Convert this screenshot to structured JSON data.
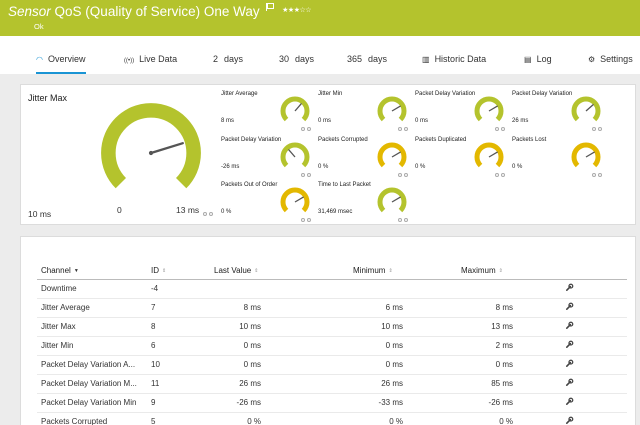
{
  "header": {
    "kind": "Sensor",
    "title": "QoS (Quality of Service) One Way",
    "stars": "★★★☆☆",
    "status": "Ok"
  },
  "tabs": [
    {
      "icon": "◠",
      "label": "Overview"
    },
    {
      "icon": "((•))",
      "label": "Live Data"
    },
    {
      "num": "2",
      "label": "days"
    },
    {
      "num": "30",
      "label": "days"
    },
    {
      "num": "365",
      "label": "days"
    },
    {
      "icon": "▥",
      "label": "Historic Data"
    },
    {
      "icon": "▤",
      "label": "Log"
    },
    {
      "icon": "⚙",
      "label": "Settings"
    }
  ],
  "big_gauge": {
    "title": "Jitter Max",
    "value": "10 ms",
    "scale_min": "0",
    "scale_max": "13 ms",
    "fraction": 0.77,
    "color": "#b4c32d"
  },
  "mini_gauges": [
    {
      "label": "Jitter Average",
      "value": "8 ms",
      "fraction": 0.65,
      "color": "#b4c32d"
    },
    {
      "label": "Jitter Min",
      "value": "0 ms",
      "fraction": 0.72,
      "color": "#b4c32d"
    },
    {
      "label": "Packet Delay Variation",
      "value": "0 ms",
      "fraction": 0.72,
      "color": "#b4c32d"
    },
    {
      "label": "Packet Delay Variation",
      "value": "26 ms",
      "fraction": 0.68,
      "color": "#b4c32d"
    },
    {
      "label": "Packet Delay Variation",
      "value": "-26 ms",
      "fraction": 0.35,
      "color": "#b4c32d"
    },
    {
      "label": "Packets Corrupted",
      "value": "0 %",
      "fraction": 0.72,
      "color": "#e3b800"
    },
    {
      "label": "Packets Duplicated",
      "value": "0 %",
      "fraction": 0.72,
      "color": "#e3b800"
    },
    {
      "label": "Packets Lost",
      "value": "0 %",
      "fraction": 0.72,
      "color": "#e3b800"
    },
    {
      "label": "Packets Out of Order",
      "value": "0 %",
      "fraction": 0.72,
      "color": "#e3b800"
    },
    {
      "label": "Time to Last Packet",
      "value": "31,469 msec",
      "fraction": 0.72,
      "color": "#b4c32d"
    }
  ],
  "table": {
    "headers": {
      "channel": "Channel",
      "id": "ID",
      "last": "Last Value",
      "min": "Minimum",
      "max": "Maximum"
    },
    "rows": [
      {
        "channel": "Downtime",
        "id": "-4",
        "last": "",
        "min": "",
        "max": ""
      },
      {
        "channel": "Jitter Average",
        "id": "7",
        "last": "8 ms",
        "min": "6 ms",
        "max": "8 ms"
      },
      {
        "channel": "Jitter Max",
        "id": "8",
        "last": "10 ms",
        "min": "10 ms",
        "max": "13 ms"
      },
      {
        "channel": "Jitter Min",
        "id": "6",
        "last": "0 ms",
        "min": "0 ms",
        "max": "2 ms"
      },
      {
        "channel": "Packet Delay Variation A...",
        "id": "10",
        "last": "0 ms",
        "min": "0 ms",
        "max": "0 ms"
      },
      {
        "channel": "Packet Delay Variation M...",
        "id": "11",
        "last": "26 ms",
        "min": "26 ms",
        "max": "85 ms"
      },
      {
        "channel": "Packet Delay Variation Min",
        "id": "9",
        "last": "-26 ms",
        "min": "-33 ms",
        "max": "-26 ms"
      },
      {
        "channel": "Packets Corrupted",
        "id": "5",
        "last": "0 %",
        "min": "0 %",
        "max": "0 %"
      }
    ]
  }
}
